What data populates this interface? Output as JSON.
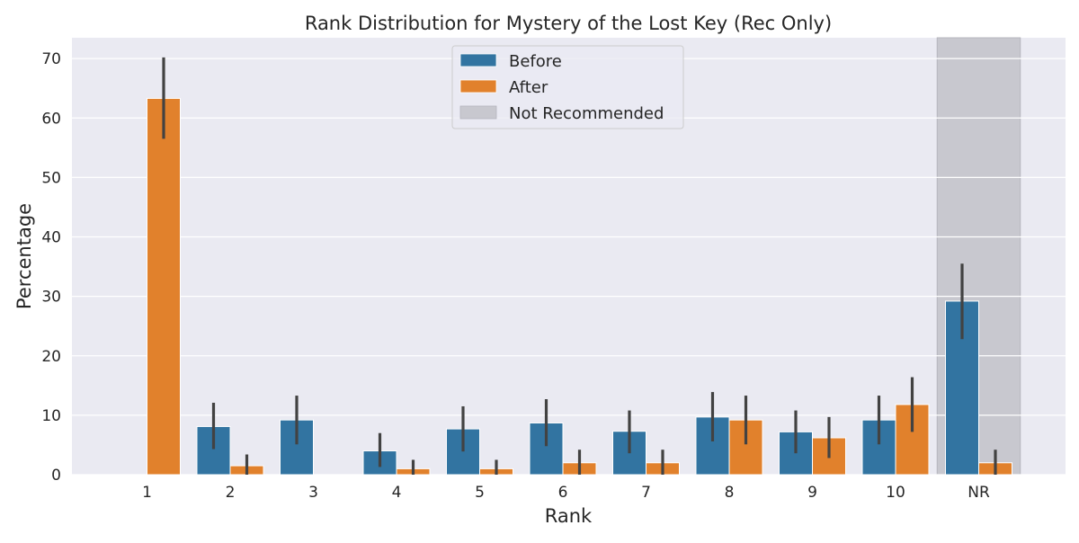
{
  "chart_data": {
    "type": "bar",
    "title": "Rank Distribution for Mystery of the Lost Key (Rec Only)",
    "xlabel": "Rank",
    "ylabel": "Percentage",
    "categories": [
      "1",
      "2",
      "3",
      "4",
      "5",
      "6",
      "7",
      "8",
      "9",
      "10",
      "NR"
    ],
    "ylim": [
      0,
      73.5
    ],
    "yticks": [
      0,
      10,
      20,
      30,
      40,
      50,
      60,
      70
    ],
    "grid": true,
    "legend_position": "top-center",
    "highlight": {
      "category": "NR",
      "label": "Not Recommended",
      "color": "#c8c8cf"
    },
    "series": [
      {
        "name": "Before",
        "color": "#3274a1",
        "values": [
          0,
          8.1,
          9.2,
          4.0,
          7.7,
          8.7,
          7.3,
          9.7,
          7.2,
          9.2,
          29.2
        ],
        "ci_low": [
          0,
          4.3,
          5.1,
          1.3,
          3.9,
          4.8,
          3.6,
          5.6,
          3.6,
          5.1,
          22.8
        ],
        "ci_high": [
          0,
          12.1,
          13.3,
          7.0,
          11.5,
          12.7,
          10.8,
          13.9,
          10.8,
          13.3,
          35.5
        ]
      },
      {
        "name": "After",
        "color": "#e1812c",
        "values": [
          63.3,
          1.5,
          0,
          1.0,
          1.0,
          2.0,
          2.0,
          9.2,
          6.2,
          11.8,
          2.0
        ],
        "ci_low": [
          56.5,
          0,
          0,
          0,
          0,
          0,
          0,
          5.1,
          2.8,
          7.2,
          0
        ],
        "ci_high": [
          70.2,
          3.4,
          0,
          2.5,
          2.5,
          4.2,
          4.2,
          13.3,
          9.7,
          16.4,
          4.2
        ]
      }
    ]
  }
}
